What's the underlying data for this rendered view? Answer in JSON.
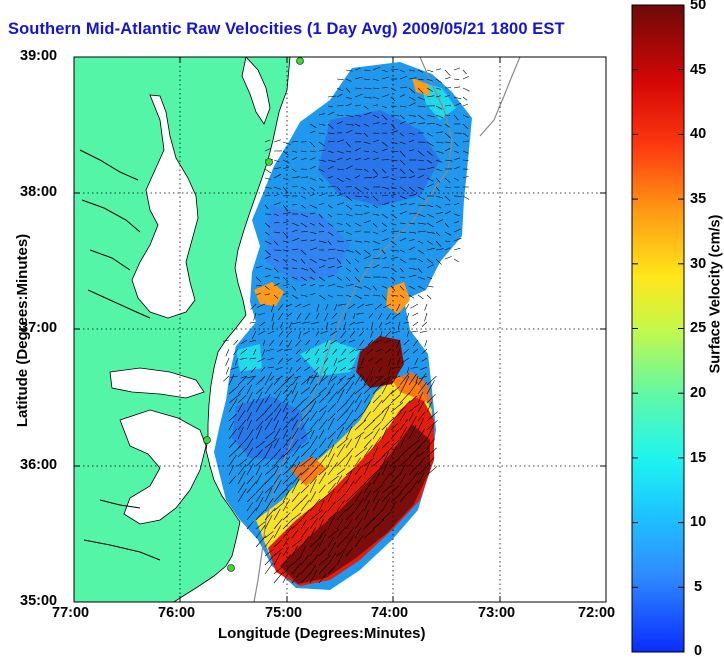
{
  "map": {
    "title": "Southern Mid-Atlantic Raw Velocities (1 Day Avg) 2009/05/21 1800 EST",
    "xlabel": "Longitude (Degrees:Minutes)",
    "ylabel": "Latitude (Degrees:Minutes)",
    "x_ticks": [
      "77:00",
      "76:00",
      "75:00",
      "74:00",
      "73:00",
      "72:00"
    ],
    "y_ticks": [
      "39:00",
      "38:00",
      "37:00",
      "36:00",
      "35:00"
    ],
    "lon_range": [
      -77,
      -72
    ],
    "lat_range": [
      35,
      39
    ],
    "grid": true
  },
  "colorbar": {
    "label": "Surface Velocity (cm/s)",
    "ticks": [
      "50",
      "45",
      "40",
      "35",
      "30",
      "25",
      "20",
      "15",
      "10",
      "5",
      "0"
    ],
    "range": [
      0,
      50
    ]
  },
  "colors": {
    "land": "#55f5a8",
    "water": "#ffffff",
    "title": "#1414d8",
    "station": "#33dd33"
  }
}
